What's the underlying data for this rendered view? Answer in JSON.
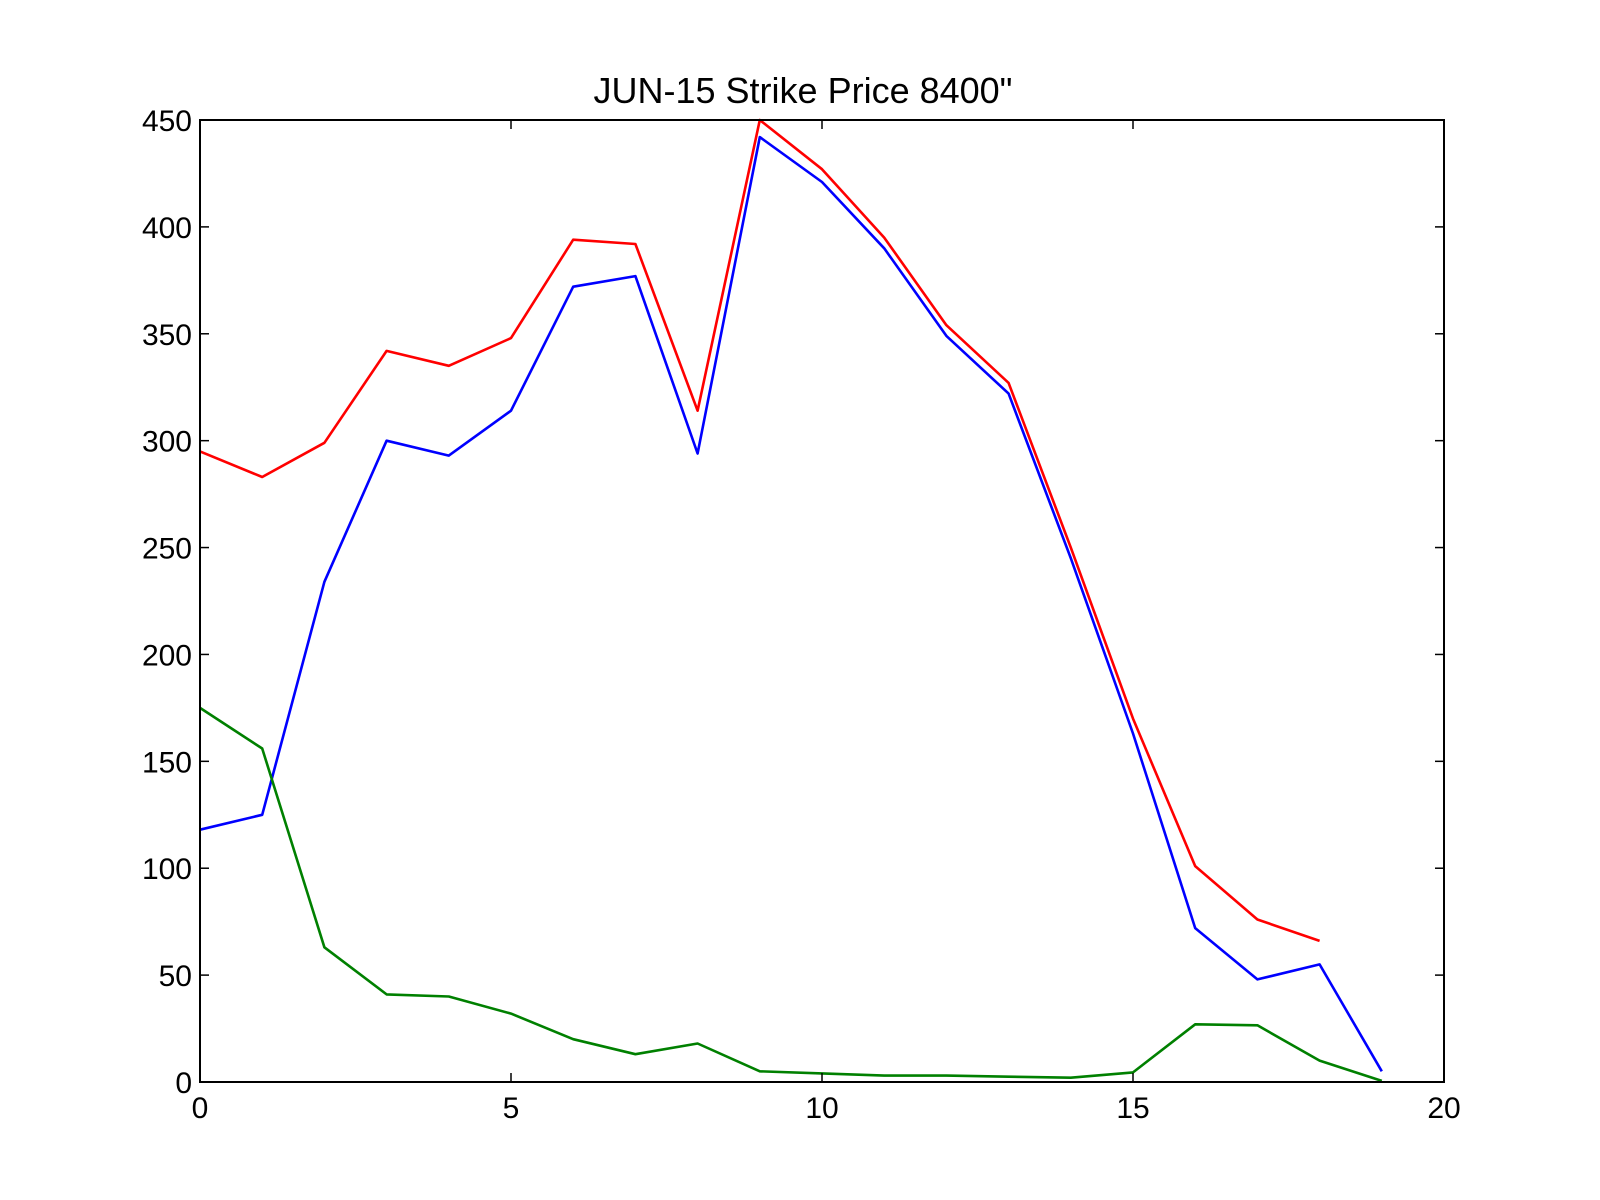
{
  "chart_data": {
    "type": "line",
    "title": "JUN-15 Strike Price 8400\"",
    "xlabel": "",
    "ylabel": "",
    "xlim": [
      0,
      20
    ],
    "ylim": [
      0,
      450
    ],
    "xticks": [
      0,
      5,
      10,
      15,
      20
    ],
    "yticks": [
      0,
      50,
      100,
      150,
      200,
      250,
      300,
      350,
      400,
      450
    ],
    "grid": false,
    "legend": "none",
    "series": [
      {
        "color": "#ff0000",
        "x": [
          0,
          1,
          2,
          3,
          4,
          5,
          6,
          7,
          8,
          9,
          10,
          11,
          12,
          13,
          14,
          15,
          16,
          17,
          18
        ],
        "values": [
          295,
          283,
          299,
          342,
          335,
          348,
          394,
          392,
          314,
          450,
          427,
          395,
          354,
          327,
          250,
          170,
          101,
          76,
          66
        ]
      },
      {
        "color": "#0000ff",
        "x": [
          0,
          1,
          2,
          3,
          4,
          5,
          6,
          7,
          8,
          9,
          10,
          11,
          12,
          13,
          14,
          15,
          16,
          17,
          18,
          19
        ],
        "values": [
          118,
          125,
          234,
          300,
          293,
          314,
          372,
          377,
          294,
          442,
          421,
          390,
          349,
          322,
          245,
          163,
          72,
          48,
          55,
          5
        ]
      },
      {
        "color": "#008000",
        "x": [
          0,
          1,
          2,
          3,
          4,
          5,
          6,
          7,
          8,
          9,
          10,
          11,
          12,
          13,
          14,
          15,
          16,
          17,
          18,
          19
        ],
        "values": [
          175,
          156,
          63,
          41,
          40,
          32,
          20,
          13,
          18,
          5,
          4,
          3,
          3,
          2.5,
          2,
          4.5,
          27,
          26.5,
          10,
          0.5
        ]
      }
    ]
  }
}
